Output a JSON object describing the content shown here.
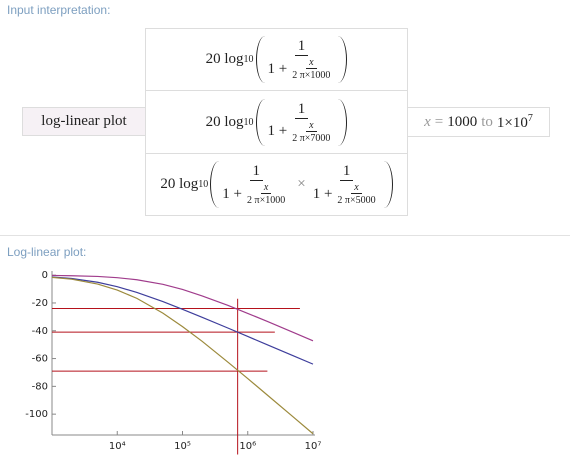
{
  "header": {
    "input_label": "Input interpretation:",
    "plot_label": "Log-linear plot:"
  },
  "input": {
    "function": "log-linear plot",
    "formulas": [
      {
        "prefix": "20 log",
        "sub": "10",
        "num": "1",
        "den_lead": "1 +",
        "inner_num": "x",
        "inner_den": "2 π×1000"
      },
      {
        "prefix": "20 log",
        "sub": "10",
        "num": "1",
        "den_lead": "1 +",
        "inner_num": "x",
        "inner_den": "2 π×7000"
      },
      {
        "prefix": "20 log",
        "sub": "10",
        "num": "1",
        "den_lead": "1 +",
        "inner_num": "x",
        "inner_den": "2 π×1000",
        "times": "×",
        "num2": "1",
        "den_lead2": "1 +",
        "inner_num2": "x",
        "inner_den2": "2 π×5000"
      }
    ],
    "range": {
      "var": "x",
      "eq": "=",
      "from": "1000",
      "word": "to",
      "to": "1×10",
      "to_exp": "7"
    }
  },
  "chart_data": {
    "type": "line",
    "xscale": "log",
    "x": [
      1000,
      2000,
      5000,
      10000,
      20000,
      50000,
      100000,
      200000,
      500000,
      1000000,
      2000000,
      5000000,
      10000000
    ],
    "xlim": [
      1000,
      10000000
    ],
    "xticks": [
      {
        "value": 10000,
        "label": "10⁴"
      },
      {
        "value": 100000,
        "label": "10⁵"
      },
      {
        "value": 1000000,
        "label": "10⁶"
      },
      {
        "value": 10000000,
        "label": "10⁷"
      }
    ],
    "ylim": [
      -115,
      3
    ],
    "yticks": [
      0,
      -20,
      -40,
      -60,
      -80,
      -100
    ],
    "series": [
      {
        "color": "#a03c8c",
        "values": [
          -0.2,
          -0.4,
          -0.9,
          -1.8,
          -3.3,
          -6.6,
          -10.3,
          -14.9,
          -21.8,
          -27.5,
          -33.3,
          -41.2,
          -47.2
        ]
      },
      {
        "color": "#3e3e9c",
        "values": [
          -1.3,
          -2.4,
          -5.1,
          -8.3,
          -12.4,
          -19.0,
          -24.6,
          -30.3,
          -38.1,
          -44.1,
          -50.1,
          -58.0,
          -64.0
        ]
      },
      {
        "color": "#9c8a3c",
        "values": [
          -1.6,
          -2.9,
          -6.4,
          -10.7,
          -16.7,
          -27.3,
          -37.0,
          -47.6,
          -62.7,
          -74.4,
          -86.3,
          -102.1,
          -114.1
        ]
      }
    ],
    "reference_lines": {
      "color": "#b5121b",
      "lines": [
        {
          "y": -24,
          "x_end": 6300000
        },
        {
          "y": -41,
          "x_end": 2600000
        },
        {
          "y": -69,
          "x_end": 2000000
        },
        {
          "x": 700000,
          "y_from": -17,
          "y_to": -129
        }
      ]
    }
  }
}
